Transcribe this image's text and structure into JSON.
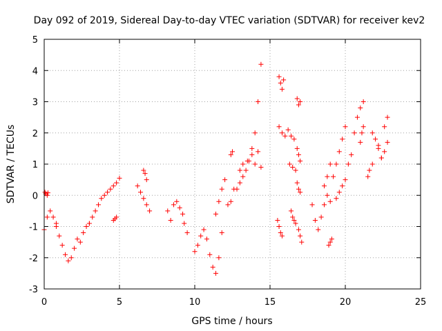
{
  "chart_data": {
    "type": "scatter",
    "title": "Day 092 of 2019, Sidereal Day-to-day VTEC variation (SDTVAR) for receiver kev2",
    "xlabel": "GPS time / hours",
    "ylabel": "SDTVAR / TECUs",
    "xlim": [
      0,
      25
    ],
    "ylim": [
      -3,
      5
    ],
    "xticks": [
      "0",
      "5",
      "10",
      "15",
      "20",
      "25"
    ],
    "yticks": [
      "-3",
      "-2",
      "-1",
      "0",
      "1",
      "2",
      "3",
      "4",
      "5"
    ],
    "grid": true,
    "marker": "plus",
    "color": "#ff0000",
    "series": [
      {
        "name": "SDTVAR",
        "segments": [
          {
            "x": [
              0.0,
              0.2,
              0.4,
              0.6,
              0.8
            ],
            "y": [
              -1.1,
              -0.7,
              -0.5,
              -0.7,
              -0.9
            ]
          },
          {
            "x": [
              0.05,
              0.1,
              0.2,
              0.25
            ],
            "y": [
              0.1,
              0.05,
              0.0,
              0.08
            ]
          },
          {
            "x": [
              0.8,
              1.0,
              1.2,
              1.4,
              1.6,
              1.8,
              2.0,
              2.2,
              2.4,
              2.6,
              2.8,
              3.0
            ],
            "y": [
              -1.0,
              -1.3,
              -1.6,
              -1.9,
              -2.1,
              -2.0,
              -1.7,
              -1.4,
              -1.5,
              -1.2,
              -1.0,
              -0.9
            ]
          },
          {
            "x": [
              3.0,
              3.2,
              3.4,
              3.6,
              3.8,
              4.0,
              4.2,
              4.4,
              4.6,
              4.8,
              5.0
            ],
            "y": [
              -0.9,
              -0.7,
              -0.5,
              -0.3,
              -0.1,
              0.0,
              0.1,
              0.2,
              0.3,
              0.4,
              0.55
            ]
          },
          {
            "x": [
              4.6,
              4.7,
              4.8
            ],
            "y": [
              -0.8,
              -0.75,
              -0.7
            ]
          },
          {
            "x": [
              6.2,
              6.4,
              6.6,
              6.8,
              7.0
            ],
            "y": [
              0.3,
              0.1,
              -0.1,
              -0.3,
              -0.5
            ]
          },
          {
            "x": [
              6.6,
              6.7,
              6.8
            ],
            "y": [
              0.8,
              0.7,
              0.5
            ]
          },
          {
            "x": [
              8.2,
              8.4,
              8.6,
              8.8,
              9.0
            ],
            "y": [
              -0.5,
              -0.8,
              -0.3,
              -0.2,
              -0.4
            ]
          },
          {
            "x": [
              9.2,
              9.3,
              9.5
            ],
            "y": [
              -0.6,
              -0.9,
              -1.2
            ]
          },
          {
            "x": [
              10.0,
              10.2,
              10.4,
              10.6,
              10.8,
              11.0,
              11.2,
              11.4,
              11.6,
              11.8
            ],
            "y": [
              -1.8,
              -1.6,
              -1.3,
              -1.1,
              -1.4,
              -1.9,
              -2.3,
              -2.5,
              -2.0,
              -1.2
            ]
          },
          {
            "x": [
              11.4,
              11.6,
              11.8,
              12.0
            ],
            "y": [
              -0.6,
              -0.2,
              0.2,
              0.5
            ]
          },
          {
            "x": [
              12.2,
              12.4,
              12.6
            ],
            "y": [
              -0.3,
              -0.2,
              0.2
            ]
          },
          {
            "x": [
              12.4,
              12.5
            ],
            "y": [
              1.3,
              1.4
            ]
          },
          {
            "x": [
              12.8,
              13.0,
              13.2,
              13.4,
              13.6,
              13.8,
              14.0,
              14.2,
              14.4
            ],
            "y": [
              0.2,
              0.4,
              0.6,
              0.8,
              1.1,
              1.5,
              2.0,
              3.0,
              4.2
            ]
          },
          {
            "x": [
              13.0,
              13.2,
              13.5,
              13.8
            ],
            "y": [
              0.8,
              1.0,
              1.1,
              1.3
            ]
          },
          {
            "x": [
              14.0,
              14.2,
              14.4
            ],
            "y": [
              1.0,
              1.4,
              0.9
            ]
          },
          {
            "x": [
              15.6,
              15.7,
              15.8,
              15.9
            ],
            "y": [
              3.8,
              3.6,
              3.4,
              3.7
            ]
          },
          {
            "x": [
              15.6,
              15.8,
              16.0
            ],
            "y": [
              2.2,
              2.0,
              1.9
            ]
          },
          {
            "x": [
              15.5,
              15.6,
              15.7,
              15.8
            ],
            "y": [
              -0.8,
              -1.0,
              -1.2,
              -1.3
            ]
          },
          {
            "x": [
              16.2,
              16.4,
              16.6
            ],
            "y": [
              2.1,
              1.9,
              1.8
            ]
          },
          {
            "x": [
              16.3,
              16.5,
              16.7
            ],
            "y": [
              1.0,
              0.9,
              0.8
            ]
          },
          {
            "x": [
              16.4,
              16.5,
              16.6,
              16.7
            ],
            "y": [
              -0.5,
              -0.7,
              -0.8,
              -0.9
            ]
          },
          {
            "x": [
              16.8,
              16.9,
              17.0
            ],
            "y": [
              3.1,
              2.9,
              3.0
            ]
          },
          {
            "x": [
              16.8,
              16.9,
              17.0
            ],
            "y": [
              1.5,
              1.3,
              1.1
            ]
          },
          {
            "x": [
              16.8,
              16.9,
              17.0
            ],
            "y": [
              0.4,
              0.2,
              0.1
            ]
          },
          {
            "x": [
              16.9,
              17.0,
              17.1
            ],
            "y": [
              -1.1,
              -1.3,
              -1.5
            ]
          },
          {
            "x": [
              17.8,
              18.0,
              18.2,
              18.4,
              18.6,
              18.8,
              19.0
            ],
            "y": [
              -0.3,
              -0.8,
              -1.1,
              -0.7,
              -0.3,
              0.0,
              -0.2
            ]
          },
          {
            "x": [
              18.6,
              18.8,
              19.0
            ],
            "y": [
              0.3,
              0.6,
              1.0
            ]
          },
          {
            "x": [
              18.9,
              19.0,
              19.1
            ],
            "y": [
              -1.6,
              -1.5,
              -1.4
            ]
          },
          {
            "x": [
              19.2,
              19.4,
              19.6,
              19.8,
              20.0
            ],
            "y": [
              0.6,
              1.0,
              1.4,
              1.8,
              2.2
            ]
          },
          {
            "x": [
              19.4,
              19.6,
              19.8
            ],
            "y": [
              -0.1,
              0.1,
              0.3
            ]
          },
          {
            "x": [
              20.0,
              20.2,
              20.4
            ],
            "y": [
              0.5,
              1.0,
              1.3
            ]
          },
          {
            "x": [
              20.6,
              20.8,
              21.0,
              21.2
            ],
            "y": [
              2.0,
              2.5,
              2.8,
              3.0
            ]
          },
          {
            "x": [
              21.0,
              21.1,
              21.2
            ],
            "y": [
              1.7,
              2.0,
              2.2
            ]
          },
          {
            "x": [
              21.5,
              21.6,
              21.8
            ],
            "y": [
              0.6,
              0.8,
              1.0
            ]
          },
          {
            "x": [
              21.8,
              22.0,
              22.2,
              22.4,
              22.6,
              22.8
            ],
            "y": [
              2.0,
              1.8,
              1.6,
              1.2,
              2.2,
              2.5
            ]
          },
          {
            "x": [
              22.2,
              22.4,
              22.6,
              22.8
            ],
            "y": [
              1.5,
              1.2,
              1.4,
              1.7
            ]
          }
        ]
      }
    ]
  }
}
